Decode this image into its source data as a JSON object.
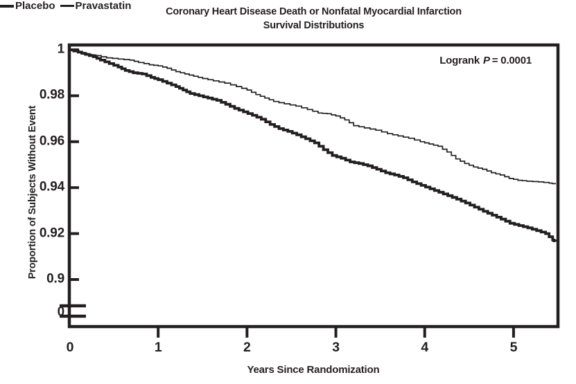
{
  "ink_color": "#231f20",
  "title": {
    "line1": "Coronary Heart Disease Death or Nonfatal Myocardial Infarction",
    "line2": "Survival Distributions"
  },
  "annotation": {
    "pre": "Logrank",
    "italic_var": "P",
    "post": "= 0.0001"
  },
  "axes": {
    "xlabel": "Years Since Randomization",
    "ylabel": "Proportion of Subjects Without Event"
  },
  "chart_data": {
    "type": "line",
    "subtype": "kaplan-meier-step",
    "title": "Coronary Heart Disease Death or Nonfatal Myocardial Infarction",
    "subtitle": "Survival Distributions",
    "xlabel": "Years Since Randomization",
    "ylabel": "Proportion of Subjects Without Event",
    "annotation": "Logrank P = 0.0001",
    "xlim": [
      0,
      5.5
    ],
    "ylim_visible": [
      0.9,
      1.0
    ],
    "y_axis_break_to_zero": true,
    "grid": false,
    "legend_position": "inside-bottom-left",
    "x_ticks": [
      0,
      1,
      2,
      3,
      4,
      5
    ],
    "x_tick_labels": [
      "0",
      "1",
      "2",
      "3",
      "4",
      "5"
    ],
    "y_ticks": [
      1,
      0.98,
      0.96,
      0.94,
      0.92,
      0.9,
      0
    ],
    "y_tick_labels": [
      "1",
      "0.98",
      "0.96",
      "0.94",
      "0.92",
      "0.9",
      "0"
    ],
    "series": [
      {
        "name": "Placebo",
        "line": "thick",
        "points": [
          [
            0,
            1
          ],
          [
            0.1,
            0.999
          ],
          [
            0.18,
            0.998
          ],
          [
            0.27,
            0.997
          ],
          [
            0.35,
            0.9955
          ],
          [
            0.45,
            0.994
          ],
          [
            0.55,
            0.9925
          ],
          [
            0.63,
            0.991
          ],
          [
            0.72,
            0.99
          ],
          [
            0.82,
            0.9895
          ],
          [
            0.92,
            0.988
          ],
          [
            1.0,
            0.987
          ],
          [
            1.1,
            0.9855
          ],
          [
            1.2,
            0.984
          ],
          [
            1.28,
            0.9825
          ],
          [
            1.36,
            0.981
          ],
          [
            1.46,
            0.98
          ],
          [
            1.56,
            0.979
          ],
          [
            1.66,
            0.978
          ],
          [
            1.76,
            0.9763
          ],
          [
            1.86,
            0.9745
          ],
          [
            1.96,
            0.973
          ],
          [
            2.06,
            0.9715
          ],
          [
            2.16,
            0.9698
          ],
          [
            2.26,
            0.9675
          ],
          [
            2.36,
            0.9657
          ],
          [
            2.46,
            0.9645
          ],
          [
            2.56,
            0.963
          ],
          [
            2.66,
            0.9613
          ],
          [
            2.76,
            0.9595
          ],
          [
            2.86,
            0.9565
          ],
          [
            2.96,
            0.954
          ],
          [
            3.06,
            0.9528
          ],
          [
            3.16,
            0.9512
          ],
          [
            3.26,
            0.9505
          ],
          [
            3.36,
            0.9495
          ],
          [
            3.46,
            0.948
          ],
          [
            3.56,
            0.9465
          ],
          [
            3.66,
            0.9455
          ],
          [
            3.76,
            0.9443
          ],
          [
            3.86,
            0.9425
          ],
          [
            3.96,
            0.941
          ],
          [
            4.06,
            0.9395
          ],
          [
            4.16,
            0.938
          ],
          [
            4.26,
            0.9365
          ],
          [
            4.36,
            0.935
          ],
          [
            4.46,
            0.9333
          ],
          [
            4.56,
            0.9315
          ],
          [
            4.66,
            0.9297
          ],
          [
            4.76,
            0.928
          ],
          [
            4.86,
            0.9263
          ],
          [
            4.96,
            0.9245
          ],
          [
            5.06,
            0.9235
          ],
          [
            5.16,
            0.9225
          ],
          [
            5.26,
            0.9213
          ],
          [
            5.36,
            0.92
          ],
          [
            5.44,
            0.9172
          ],
          [
            5.47,
            0.9165
          ]
        ]
      },
      {
        "name": "Pravastatin",
        "line": "thin",
        "points": [
          [
            0,
            1
          ],
          [
            0.1,
            0.999
          ],
          [
            0.2,
            0.998
          ],
          [
            0.3,
            0.9975
          ],
          [
            0.42,
            0.9965
          ],
          [
            0.55,
            0.996
          ],
          [
            0.68,
            0.9955
          ],
          [
            0.78,
            0.9945
          ],
          [
            0.9,
            0.9935
          ],
          [
            1.0,
            0.993
          ],
          [
            1.1,
            0.992
          ],
          [
            1.2,
            0.9905
          ],
          [
            1.3,
            0.9895
          ],
          [
            1.4,
            0.9885
          ],
          [
            1.5,
            0.9875
          ],
          [
            1.62,
            0.9865
          ],
          [
            1.75,
            0.9855
          ],
          [
            1.88,
            0.984
          ],
          [
            2.0,
            0.9825
          ],
          [
            2.1,
            0.9805
          ],
          [
            2.2,
            0.979
          ],
          [
            2.3,
            0.9775
          ],
          [
            2.42,
            0.9765
          ],
          [
            2.55,
            0.9755
          ],
          [
            2.68,
            0.974
          ],
          [
            2.8,
            0.9725
          ],
          [
            2.9,
            0.9722
          ],
          [
            3.0,
            0.9712
          ],
          [
            3.1,
            0.9695
          ],
          [
            3.2,
            0.967
          ],
          [
            3.32,
            0.966
          ],
          [
            3.45,
            0.965
          ],
          [
            3.58,
            0.9635
          ],
          [
            3.7,
            0.9625
          ],
          [
            3.82,
            0.9615
          ],
          [
            3.95,
            0.96
          ],
          [
            4.05,
            0.959
          ],
          [
            4.15,
            0.958
          ],
          [
            4.25,
            0.9555
          ],
          [
            4.35,
            0.9525
          ],
          [
            4.45,
            0.9505
          ],
          [
            4.55,
            0.949
          ],
          [
            4.65,
            0.948
          ],
          [
            4.75,
            0.9465
          ],
          [
            4.85,
            0.9455
          ],
          [
            4.95,
            0.944
          ],
          [
            5.05,
            0.9432
          ],
          [
            5.15,
            0.9428
          ],
          [
            5.28,
            0.9425
          ],
          [
            5.4,
            0.942
          ],
          [
            5.47,
            0.9415
          ]
        ]
      }
    ]
  }
}
